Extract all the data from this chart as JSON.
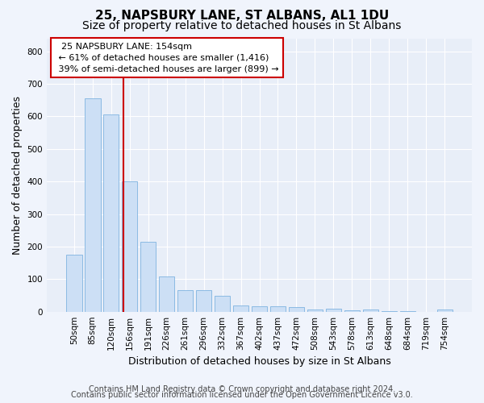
{
  "title": "25, NAPSBURY LANE, ST ALBANS, AL1 1DU",
  "subtitle": "Size of property relative to detached houses in St Albans",
  "xlabel": "Distribution of detached houses by size in St Albans",
  "ylabel": "Number of detached properties",
  "bar_color": "#ccdff5",
  "bar_edge_color": "#7fb3e0",
  "background_color": "#e8eef8",
  "grid_color": "#ffffff",
  "fig_background": "#f0f4fc",
  "categories": [
    "50sqm",
    "85sqm",
    "120sqm",
    "156sqm",
    "191sqm",
    "226sqm",
    "261sqm",
    "296sqm",
    "332sqm",
    "367sqm",
    "402sqm",
    "437sqm",
    "472sqm",
    "508sqm",
    "543sqm",
    "578sqm",
    "613sqm",
    "648sqm",
    "684sqm",
    "719sqm",
    "754sqm"
  ],
  "values": [
    175,
    655,
    605,
    400,
    215,
    108,
    67,
    67,
    48,
    18,
    17,
    16,
    13,
    7,
    8,
    3,
    7,
    1,
    1,
    0,
    7
  ],
  "ylim": [
    0,
    840
  ],
  "yticks": [
    0,
    100,
    200,
    300,
    400,
    500,
    600,
    700,
    800
  ],
  "vline_x": 2.65,
  "vline_color": "#cc0000",
  "annotation_text": "  25 NAPSBURY LANE: 154sqm  \n ← 61% of detached houses are smaller (1,416)\n 39% of semi-detached houses are larger (899) →",
  "annotation_box_color": "#ffffff",
  "annotation_border_color": "#cc0000",
  "footnote_line1": "Contains HM Land Registry data © Crown copyright and database right 2024.",
  "footnote_line2": "Contains public sector information licensed under the Open Government Licence v3.0.",
  "title_fontsize": 11,
  "subtitle_fontsize": 10,
  "ylabel_fontsize": 9,
  "xlabel_fontsize": 9,
  "tick_fontsize": 7.5,
  "annotation_fontsize": 8,
  "footnote_fontsize": 7
}
